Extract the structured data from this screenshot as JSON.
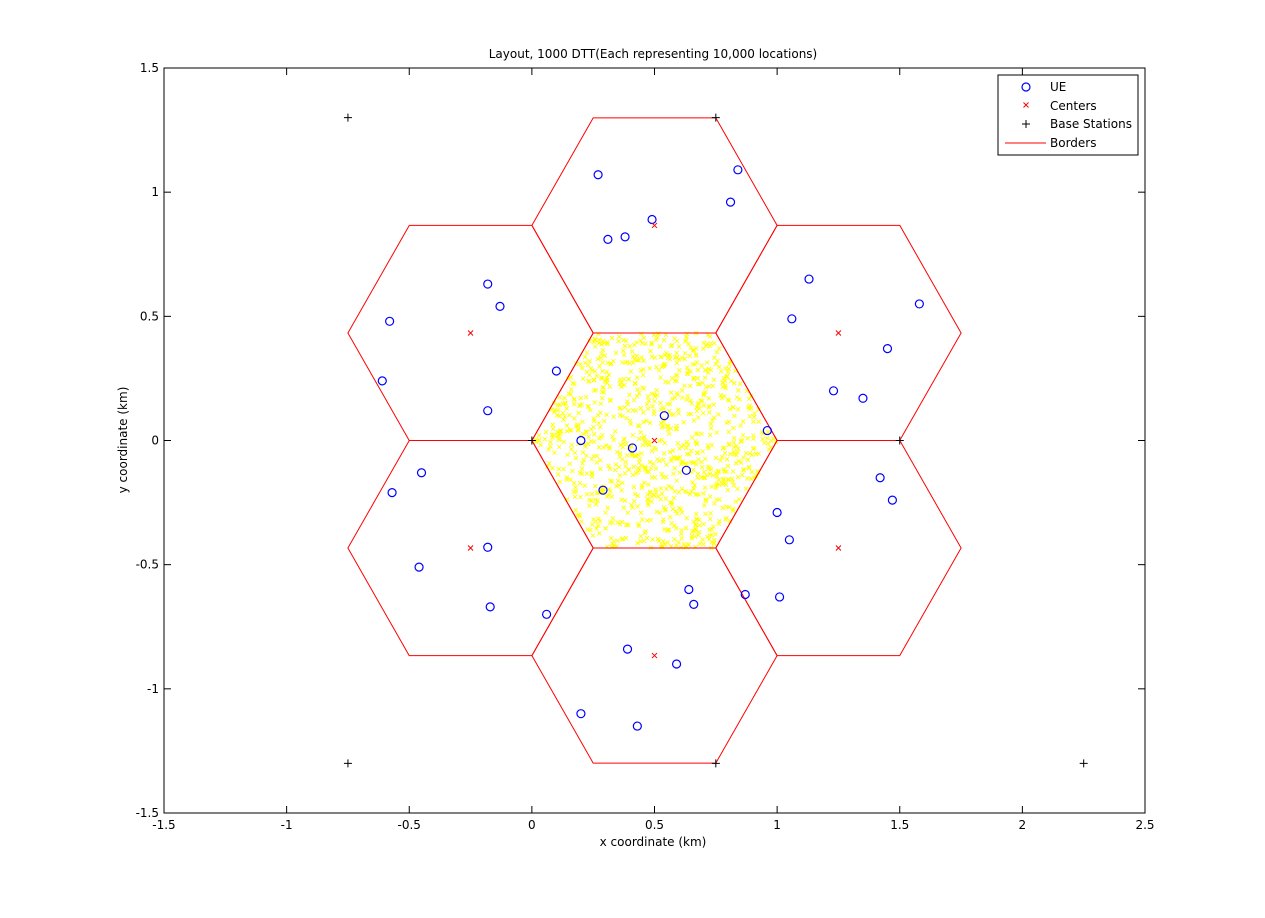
{
  "chart_data": {
    "type": "scatter",
    "title": "Layout, 1000 DTT(Each representing 10,000 locations)",
    "xlabel": "x coordinate (km)",
    "ylabel": "y coordinate (km)",
    "xlim": [
      -1.5,
      2.5
    ],
    "ylim": [
      -1.5,
      1.5
    ],
    "xticks": [
      -1.5,
      -1,
      -0.5,
      0,
      0.5,
      1,
      1.5,
      2,
      2.5
    ],
    "yticks": [
      -1.5,
      -1,
      -0.5,
      0,
      0.5,
      1,
      1.5
    ],
    "xtick_labels": [
      "-1.5",
      "-1",
      "-0.5",
      "0",
      "0.5",
      "1",
      "1.5",
      "2",
      "2.5"
    ],
    "ytick_labels": [
      "-1.5",
      "-1",
      "-0.5",
      "0",
      "0.5",
      "1",
      "1.5"
    ],
    "grid": false,
    "legend_position": "top-right",
    "hex_radius": 0.5,
    "dtt_count": 1000,
    "colors": {
      "ue": "#0000ff",
      "centers": "#ff0000",
      "base_stations": "#000000",
      "borders": "#ff0000",
      "dtt": "#ffff00"
    },
    "series": [
      {
        "name": "UE",
        "marker": "circle",
        "points": [
          [
            0.27,
            1.07
          ],
          [
            0.49,
            0.89
          ],
          [
            0.31,
            0.81
          ],
          [
            0.38,
            0.82
          ],
          [
            0.84,
            1.09
          ],
          [
            0.81,
            0.96
          ],
          [
            -0.18,
            0.63
          ],
          [
            -0.13,
            0.54
          ],
          [
            -0.58,
            0.48
          ],
          [
            -0.61,
            0.24
          ],
          [
            -0.18,
            0.12
          ],
          [
            1.13,
            0.65
          ],
          [
            1.06,
            0.49
          ],
          [
            1.58,
            0.55
          ],
          [
            1.45,
            0.37
          ],
          [
            1.23,
            0.2
          ],
          [
            1.35,
            0.17
          ],
          [
            0.1,
            0.28
          ],
          [
            0.54,
            0.1
          ],
          [
            0.2,
            0.0
          ],
          [
            0.41,
            -0.03
          ],
          [
            0.63,
            -0.12
          ],
          [
            0.29,
            -0.2
          ],
          [
            0.96,
            0.04
          ],
          [
            -0.45,
            -0.13
          ],
          [
            -0.57,
            -0.21
          ],
          [
            -0.18,
            -0.43
          ],
          [
            -0.46,
            -0.51
          ],
          [
            -0.17,
            -0.67
          ],
          [
            1.42,
            -0.15
          ],
          [
            1.47,
            -0.24
          ],
          [
            1.0,
            -0.29
          ],
          [
            1.05,
            -0.4
          ],
          [
            0.87,
            -0.62
          ],
          [
            1.01,
            -0.63
          ],
          [
            0.64,
            -0.6
          ],
          [
            0.66,
            -0.66
          ],
          [
            0.06,
            -0.7
          ],
          [
            0.39,
            -0.84
          ],
          [
            0.59,
            -0.9
          ],
          [
            0.2,
            -1.1
          ],
          [
            0.43,
            -1.15
          ]
        ]
      },
      {
        "name": "Centers",
        "marker": "x",
        "points": [
          [
            0.5,
            0
          ],
          [
            0.5,
            0.866
          ],
          [
            1.25,
            0.433
          ],
          [
            1.25,
            -0.433
          ],
          [
            0.5,
            -0.866
          ],
          [
            -0.25,
            -0.433
          ],
          [
            -0.25,
            0.433
          ]
        ]
      },
      {
        "name": "Base Stations",
        "marker": "plus",
        "points": [
          [
            -0.75,
            1.3
          ],
          [
            0.75,
            1.3
          ],
          [
            0,
            0
          ],
          [
            1.5,
            0
          ],
          [
            -0.75,
            -1.3
          ],
          [
            0.75,
            -1.3
          ],
          [
            2.25,
            -1.3
          ]
        ]
      },
      {
        "name": "Borders",
        "marker": "line",
        "cell_centers": [
          [
            0.5,
            0
          ],
          [
            0.5,
            0.866
          ],
          [
            1.25,
            0.433
          ],
          [
            1.25,
            -0.433
          ],
          [
            0.5,
            -0.866
          ],
          [
            -0.25,
            -0.433
          ],
          [
            -0.25,
            0.433
          ]
        ]
      }
    ]
  }
}
